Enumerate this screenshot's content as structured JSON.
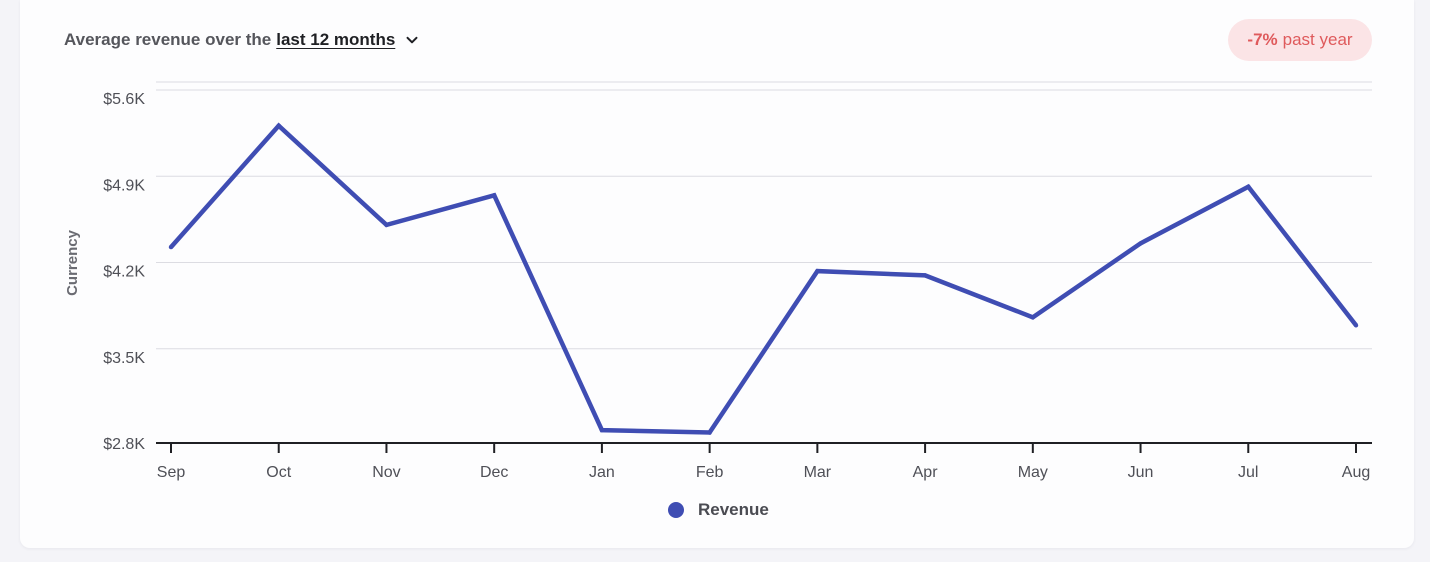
{
  "header": {
    "prefix": "Average revenue over the",
    "period": "last 12 months"
  },
  "badge": {
    "value": "-7%",
    "text": "past year"
  },
  "colors": {
    "line": "#3f4db3",
    "badge_text": "#df5a5c",
    "badge_bg": "#fbe4e6"
  },
  "icons": {
    "period_dropdown": "chevron-down-icon"
  },
  "chart_data": {
    "type": "line",
    "title": "",
    "xlabel": "",
    "ylabel": "Currency",
    "categories": [
      "Sep",
      "Oct",
      "Nov",
      "Dec",
      "Jan",
      "Feb",
      "Mar",
      "Apr",
      "May",
      "Jun",
      "Jul",
      "Aug"
    ],
    "series": [
      {
        "name": "Revenue",
        "values": [
          4390,
          5375,
          4570,
          4810,
          2905,
          2885,
          4195,
          4160,
          3820,
          4420,
          4880,
          3755
        ]
      }
    ],
    "ylim": [
      2800,
      5600
    ],
    "yticks": [
      2800,
      3500,
      4200,
      4900,
      5600
    ],
    "ytick_labels": [
      "$2.8K",
      "$3.5K",
      "$4.2K",
      "$4.9K",
      "$5.6K"
    ],
    "grid": true,
    "legend": "bottom-center"
  }
}
